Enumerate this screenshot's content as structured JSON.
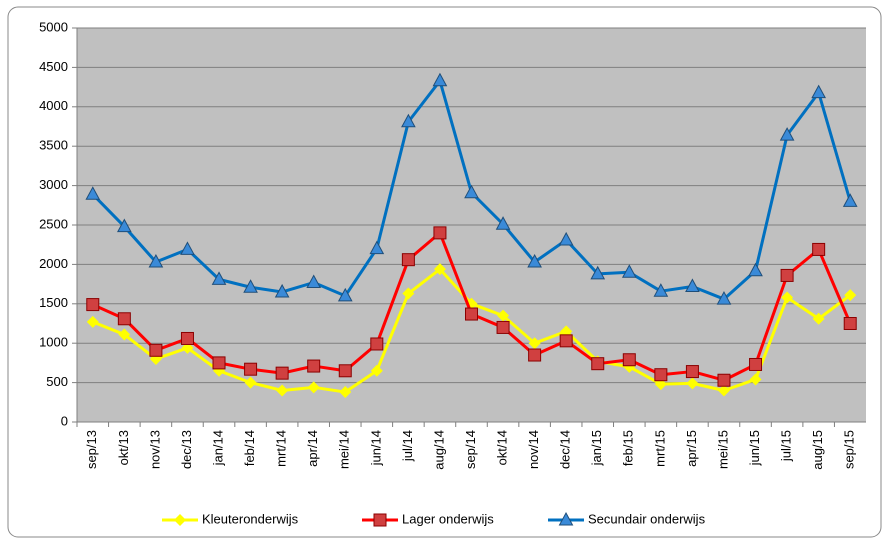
{
  "chart_data": {
    "type": "line",
    "categories": [
      "sep/13",
      "okt/13",
      "nov/13",
      "dec/13",
      "jan/14",
      "feb/14",
      "mrt/14",
      "apr/14",
      "mei/14",
      "jun/14",
      "jul/14",
      "aug/14",
      "sep/14",
      "okt/14",
      "nov/14",
      "dec/14",
      "jan/15",
      "feb/15",
      "mrt/15",
      "apr/15",
      "mei/15",
      "jun/15",
      "jul/15",
      "aug/15",
      "sep/15"
    ],
    "series": [
      {
        "name": "Kleuteronderwijs",
        "color": "#ffff00",
        "marker": "diamond",
        "values": [
          1270,
          1110,
          800,
          940,
          650,
          500,
          400,
          440,
          380,
          650,
          1630,
          1940,
          1500,
          1350,
          1000,
          1150,
          770,
          700,
          480,
          490,
          400,
          540,
          1580,
          1310,
          1610
        ]
      },
      {
        "name": "Lager onderwijs",
        "color": "#ff0000",
        "marker": "square",
        "values": [
          1490,
          1310,
          910,
          1060,
          750,
          670,
          620,
          710,
          650,
          990,
          2060,
          2400,
          1370,
          1200,
          850,
          1030,
          740,
          790,
          600,
          640,
          530,
          730,
          1860,
          2190,
          1250
        ]
      },
      {
        "name": "Secundair onderwijs",
        "color": "#0070c0",
        "marker": "triangle",
        "values": [
          2890,
          2480,
          2030,
          2190,
          1810,
          1710,
          1650,
          1770,
          1600,
          2200,
          3810,
          4330,
          2910,
          2510,
          2030,
          2310,
          1880,
          1900,
          1660,
          1720,
          1560,
          1920,
          3640,
          4180,
          2800
        ]
      }
    ],
    "ylim": [
      0,
      5000
    ],
    "yticks": [
      0,
      500,
      1000,
      1500,
      2000,
      2500,
      3000,
      3500,
      4000,
      4500,
      5000
    ],
    "grid": true,
    "legend": "bottom",
    "plot_background": "#c0c0c0"
  }
}
